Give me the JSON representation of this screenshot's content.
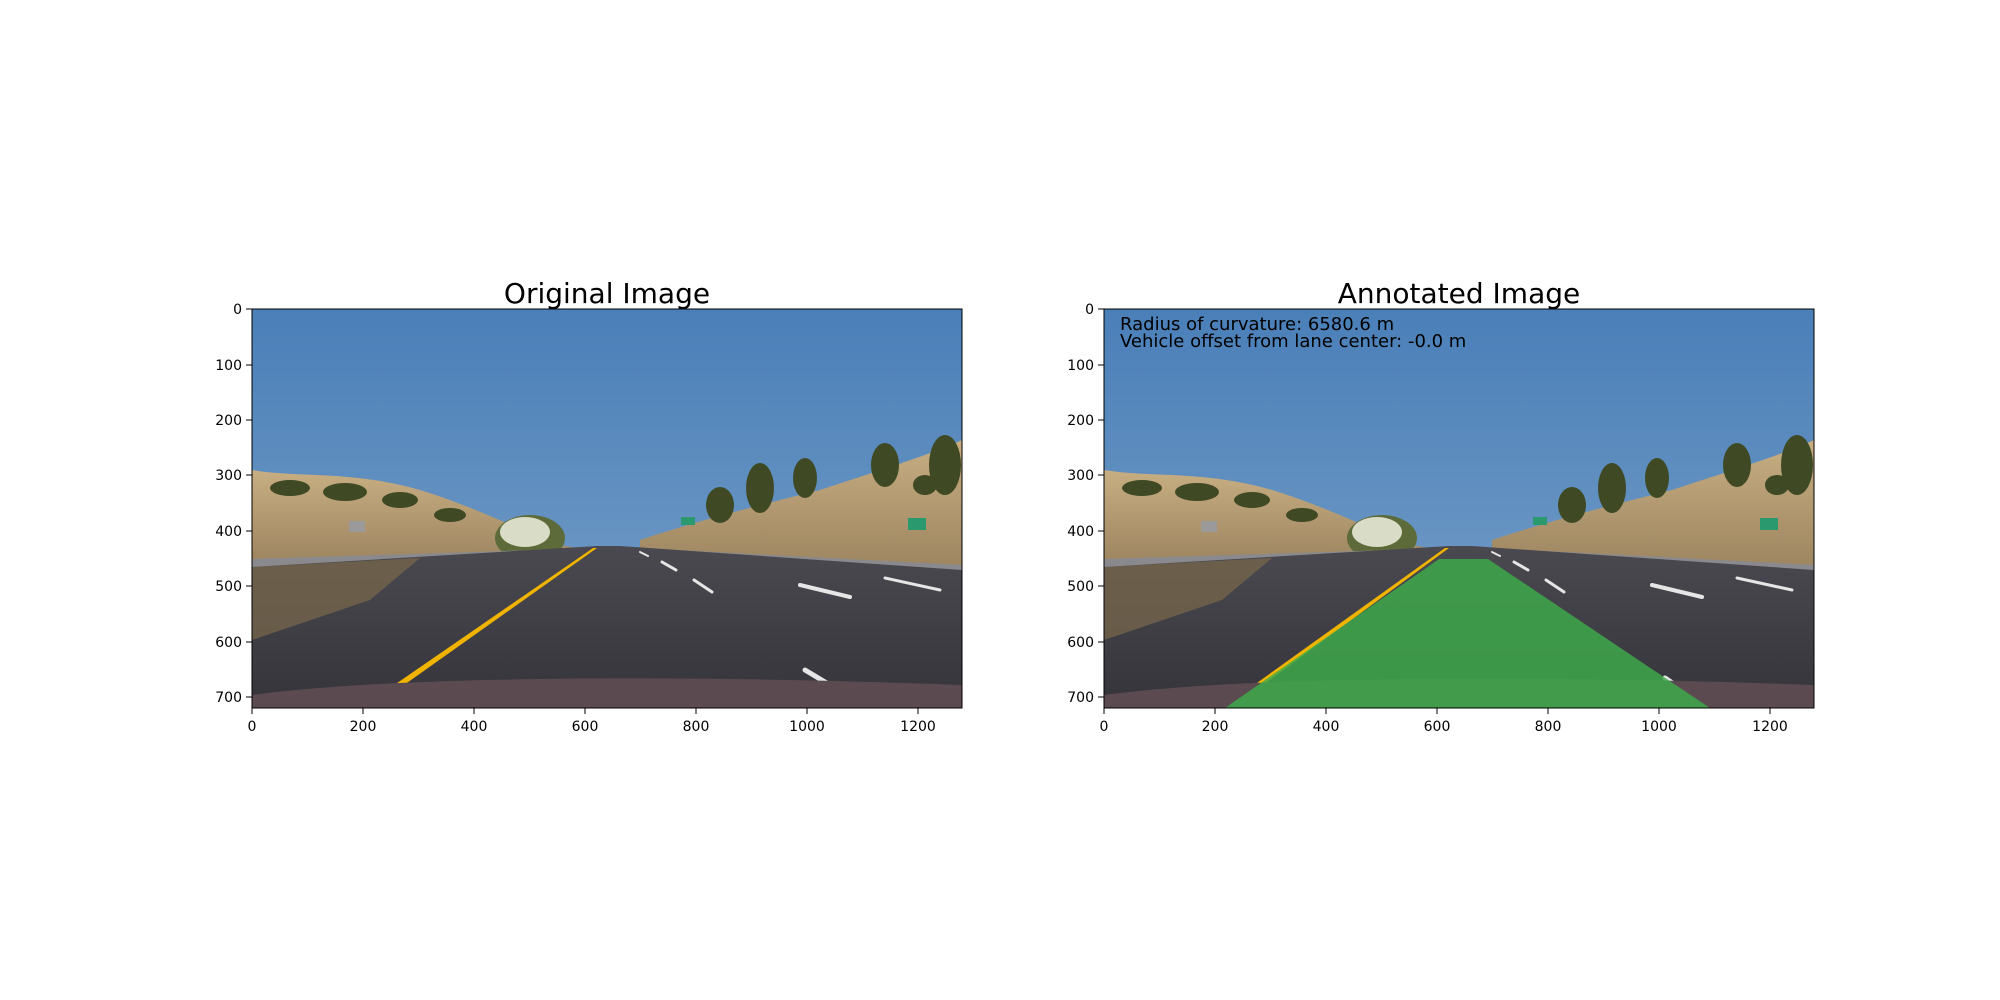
{
  "left_panel": {
    "title": "Original Image",
    "y_ticks": [
      "0",
      "100",
      "200",
      "300",
      "400",
      "500",
      "600",
      "700"
    ],
    "x_ticks": [
      "0",
      "200",
      "400",
      "600",
      "800",
      "1000",
      "1200"
    ]
  },
  "right_panel": {
    "title": "Annotated Image",
    "y_ticks": [
      "0",
      "100",
      "200",
      "300",
      "400",
      "500",
      "600",
      "700"
    ],
    "x_ticks": [
      "0",
      "200",
      "400",
      "600",
      "800",
      "1000",
      "1200"
    ],
    "annotation_line1": "Radius of curvature: 6580.6 m",
    "annotation_line2": "Vehicle offset from lane center: -0.0 m",
    "lane_overlay_color": "#3ea84a"
  },
  "colors": {
    "sky": "#4e83b8",
    "road": "#3c3b42",
    "hills": "#b49a70",
    "yellow_line": "#f0b400",
    "lane_fill": "#3ea84a"
  }
}
